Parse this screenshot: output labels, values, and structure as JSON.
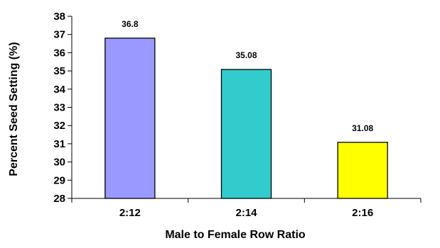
{
  "chart_data": {
    "type": "bar",
    "title": "",
    "xlabel": "Male to Female Row Ratio",
    "ylabel": "Percent Seed Setting (%)",
    "categories": [
      "2:12",
      "2:14",
      "2:16"
    ],
    "values": [
      36.8,
      35.08,
      31.08
    ],
    "data_labels": [
      "36.8",
      "35.08",
      "31.08"
    ],
    "bar_colors": [
      "#9999ff",
      "#33cccc",
      "#ffff00"
    ],
    "ylim": [
      28,
      38
    ],
    "yticks": [
      28,
      29,
      30,
      31,
      32,
      33,
      34,
      35,
      36,
      37,
      38
    ],
    "grid": false,
    "legend": "none"
  }
}
